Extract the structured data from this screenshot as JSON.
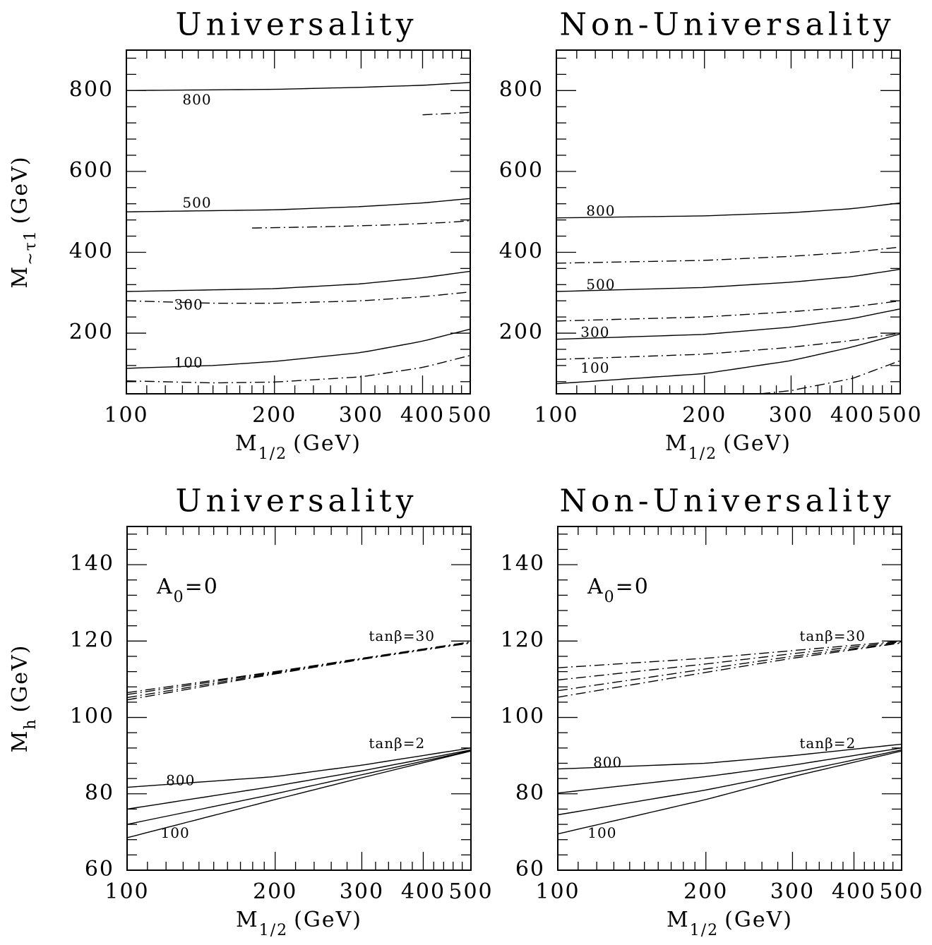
{
  "chart_data": [
    {
      "type": "line",
      "title": "Universality",
      "xlabel": "M1/2 (GeV)",
      "xlabel_parts": {
        "main": "M",
        "sub": "1/2",
        "unit": "(GeV)"
      },
      "ylabel": "M~τ1 (GeV)",
      "ylabel_parts": {
        "main": "M",
        "sub": "~τ1",
        "unit": "(GeV)"
      },
      "x_scale": "log",
      "xlim": [
        100,
        500
      ],
      "ylim": [
        50,
        900
      ],
      "x_ticks": [
        100,
        200,
        300,
        400,
        500
      ],
      "x_tick_labels": [
        "100",
        "200",
        "300",
        "400",
        "500"
      ],
      "y_ticks": [
        200,
        400,
        600,
        800
      ],
      "y_tick_labels": [
        "200",
        "400",
        "600",
        "800"
      ],
      "annotation": "",
      "series": [
        {
          "style": "solid",
          "x": [
            100,
            200,
            300,
            400,
            500
          ],
          "y": [
            800,
            803,
            808,
            813,
            820
          ]
        },
        {
          "style": "dashdot",
          "x": [
            400,
            450,
            500
          ],
          "y": [
            740,
            743,
            746
          ]
        },
        {
          "style": "solid",
          "x": [
            100,
            200,
            300,
            400,
            500
          ],
          "y": [
            500,
            505,
            513,
            522,
            533
          ]
        },
        {
          "style": "dashdot",
          "x": [
            180,
            250,
            350,
            450,
            500
          ],
          "y": [
            460,
            463,
            468,
            474,
            478
          ]
        },
        {
          "style": "solid",
          "x": [
            100,
            200,
            300,
            400,
            500
          ],
          "y": [
            303,
            310,
            322,
            337,
            353
          ]
        },
        {
          "style": "dashdot",
          "x": [
            100,
            150,
            200,
            300,
            400,
            500
          ],
          "y": [
            280,
            274,
            274,
            280,
            290,
            302
          ]
        },
        {
          "style": "solid",
          "x": [
            100,
            150,
            200,
            300,
            400,
            500
          ],
          "y": [
            113,
            120,
            130,
            152,
            180,
            210
          ]
        },
        {
          "style": "dashdot",
          "x": [
            100,
            150,
            200,
            300,
            400,
            500
          ],
          "y": [
            82,
            77,
            79,
            92,
            115,
            145
          ]
        }
      ],
      "curve_labels": [
        {
          "text": "800",
          "x": 130,
          "y": 775
        },
        {
          "text": "500",
          "x": 130,
          "y": 520
        },
        {
          "text": "300",
          "x": 125,
          "y": 268
        },
        {
          "text": "100",
          "x": 125,
          "y": 125
        }
      ]
    },
    {
      "type": "line",
      "title": "Non-Universality",
      "xlabel": "M1/2 (GeV)",
      "xlabel_parts": {
        "main": "M",
        "sub": "1/2",
        "unit": "(GeV)"
      },
      "ylabel": "",
      "ylabel_parts": null,
      "x_scale": "log",
      "xlim": [
        100,
        500
      ],
      "ylim": [
        50,
        900
      ],
      "x_ticks": [
        100,
        200,
        300,
        400,
        500
      ],
      "x_tick_labels": [
        "100",
        "200",
        "300",
        "400",
        "500"
      ],
      "y_ticks": [
        200,
        400,
        600,
        800
      ],
      "y_tick_labels": [
        "200",
        "400",
        "600",
        "800"
      ],
      "annotation": "",
      "series": [
        {
          "style": "solid",
          "x": [
            100,
            200,
            300,
            400,
            500
          ],
          "y": [
            485,
            490,
            498,
            508,
            522
          ]
        },
        {
          "style": "dashdot",
          "x": [
            100,
            200,
            300,
            400,
            500
          ],
          "y": [
            373,
            380,
            390,
            400,
            413
          ]
        },
        {
          "style": "solid",
          "x": [
            100,
            200,
            300,
            400,
            500
          ],
          "y": [
            303,
            313,
            326,
            340,
            358
          ]
        },
        {
          "style": "dashdot",
          "x": [
            100,
            200,
            300,
            400,
            500
          ],
          "y": [
            230,
            240,
            253,
            265,
            280
          ]
        },
        {
          "style": "solid",
          "x": [
            100,
            200,
            300,
            400,
            500
          ],
          "y": [
            185,
            197,
            215,
            236,
            260
          ]
        },
        {
          "style": "dashdot",
          "x": [
            100,
            200,
            300,
            400,
            500
          ],
          "y": [
            135,
            148,
            165,
            182,
            200
          ]
        },
        {
          "style": "solid",
          "x": [
            100,
            200,
            300,
            400,
            500
          ],
          "y": [
            75,
            100,
            132,
            166,
            198
          ]
        },
        {
          "style": "dashdot",
          "x": [
            260,
            300,
            400,
            500
          ],
          "y": [
            50,
            58,
            88,
            132
          ]
        }
      ],
      "curve_labels": [
        {
          "text": "800",
          "x": 115,
          "y": 500
        },
        {
          "text": "500",
          "x": 115,
          "y": 318
        },
        {
          "text": "300",
          "x": 112,
          "y": 200
        },
        {
          "text": "100",
          "x": 112,
          "y": 112
        }
      ]
    },
    {
      "type": "line",
      "title": "Universality",
      "xlabel": "M1/2 (GeV)",
      "xlabel_parts": {
        "main": "M",
        "sub": "1/2",
        "unit": "(GeV)"
      },
      "ylabel": "Mh (GeV)",
      "ylabel_parts": {
        "main": "M",
        "sub": "h",
        "unit": "(GeV)"
      },
      "x_scale": "log",
      "xlim": [
        100,
        500
      ],
      "ylim": [
        60,
        150
      ],
      "x_ticks": [
        100,
        200,
        300,
        400,
        500
      ],
      "x_tick_labels": [
        "100",
        "200",
        "300",
        "400",
        "500"
      ],
      "y_ticks": [
        60,
        80,
        100,
        120,
        140
      ],
      "y_tick_labels": [
        "60",
        "80",
        "100",
        "120",
        "140"
      ],
      "annotation": {
        "main": "A",
        "sub": "0",
        "rest": "=0"
      },
      "series": [
        {
          "style": "solid",
          "x": [
            100,
            200,
            300,
            500
          ],
          "y": [
            81.7,
            84.5,
            87.5,
            92
          ]
        },
        {
          "style": "solid",
          "x": [
            100,
            200,
            300,
            500
          ],
          "y": [
            76,
            82,
            86,
            91.5
          ]
        },
        {
          "style": "solid",
          "x": [
            100,
            200,
            300,
            500
          ],
          "y": [
            72,
            80,
            85,
            91.3
          ]
        },
        {
          "style": "solid",
          "x": [
            100,
            200,
            300,
            500
          ],
          "y": [
            68.5,
            78.5,
            84.2,
            91.2
          ]
        },
        {
          "style": "dashdot",
          "x": [
            100,
            200,
            300,
            500
          ],
          "y": [
            106.5,
            112,
            115.5,
            119.8
          ]
        },
        {
          "style": "dashdot",
          "x": [
            100,
            200,
            300,
            500
          ],
          "y": [
            106,
            111.8,
            115.4,
            119.7
          ]
        },
        {
          "style": "dashdot",
          "x": [
            100,
            200,
            300,
            500
          ],
          "y": [
            105.2,
            111.6,
            115.3,
            119.6
          ]
        },
        {
          "style": "dashdot",
          "x": [
            100,
            200,
            300,
            500
          ],
          "y": [
            104.6,
            111.4,
            115.2,
            119.5
          ]
        }
      ],
      "curve_labels": [
        {
          "text": "800",
          "x": 120,
          "y": 83.3
        },
        {
          "text": "100",
          "x": 117,
          "y": 69.5
        },
        {
          "text": "tanβ=30",
          "x": 310,
          "y": 121.1
        },
        {
          "text": "tanβ=2",
          "x": 310,
          "y": 93
        }
      ]
    },
    {
      "type": "line",
      "title": "Non-Universality",
      "xlabel": "M1/2 (GeV)",
      "xlabel_parts": {
        "main": "M",
        "sub": "1/2",
        "unit": "(GeV)"
      },
      "ylabel": "",
      "ylabel_parts": null,
      "x_scale": "log",
      "xlim": [
        100,
        500
      ],
      "ylim": [
        60,
        150
      ],
      "x_ticks": [
        100,
        200,
        300,
        400,
        500
      ],
      "x_tick_labels": [
        "100",
        "200",
        "300",
        "400",
        "500"
      ],
      "y_ticks": [
        60,
        80,
        100,
        120,
        140
      ],
      "y_tick_labels": [
        "60",
        "80",
        "100",
        "120",
        "140"
      ],
      "annotation": {
        "main": "A",
        "sub": "0",
        "rest": "=0"
      },
      "series": [
        {
          "style": "solid",
          "x": [
            100,
            200,
            300,
            500
          ],
          "y": [
            86.5,
            88,
            90,
            93
          ]
        },
        {
          "style": "solid",
          "x": [
            100,
            200,
            300,
            500
          ],
          "y": [
            80.2,
            84.5,
            87.5,
            92
          ]
        },
        {
          "style": "solid",
          "x": [
            100,
            200,
            300,
            500
          ],
          "y": [
            74.5,
            81,
            85.5,
            91.5
          ]
        },
        {
          "style": "solid",
          "x": [
            100,
            200,
            300,
            500
          ],
          "y": [
            69.5,
            78.5,
            84.5,
            91.2
          ]
        },
        {
          "style": "dashdot",
          "x": [
            100,
            200,
            300,
            500
          ],
          "y": [
            113,
            115.5,
            117.5,
            120
          ]
        },
        {
          "style": "dashdot",
          "x": [
            100,
            200,
            300,
            500
          ],
          "y": [
            109.8,
            114,
            116.7,
            119.8
          ]
        },
        {
          "style": "dashdot",
          "x": [
            100,
            200,
            300,
            500
          ],
          "y": [
            107,
            112.7,
            116,
            119.6
          ]
        },
        {
          "style": "dashdot",
          "x": [
            100,
            200,
            300,
            500
          ],
          "y": [
            105.3,
            111.8,
            115.5,
            119.5
          ]
        }
      ],
      "curve_labels": [
        {
          "text": "800",
          "x": 118,
          "y": 88
        },
        {
          "text": "100",
          "x": 115,
          "y": 69.5
        },
        {
          "text": "tanβ=30",
          "x": 310,
          "y": 121.1
        },
        {
          "text": "tanβ=2",
          "x": 310,
          "y": 93
        }
      ]
    }
  ]
}
